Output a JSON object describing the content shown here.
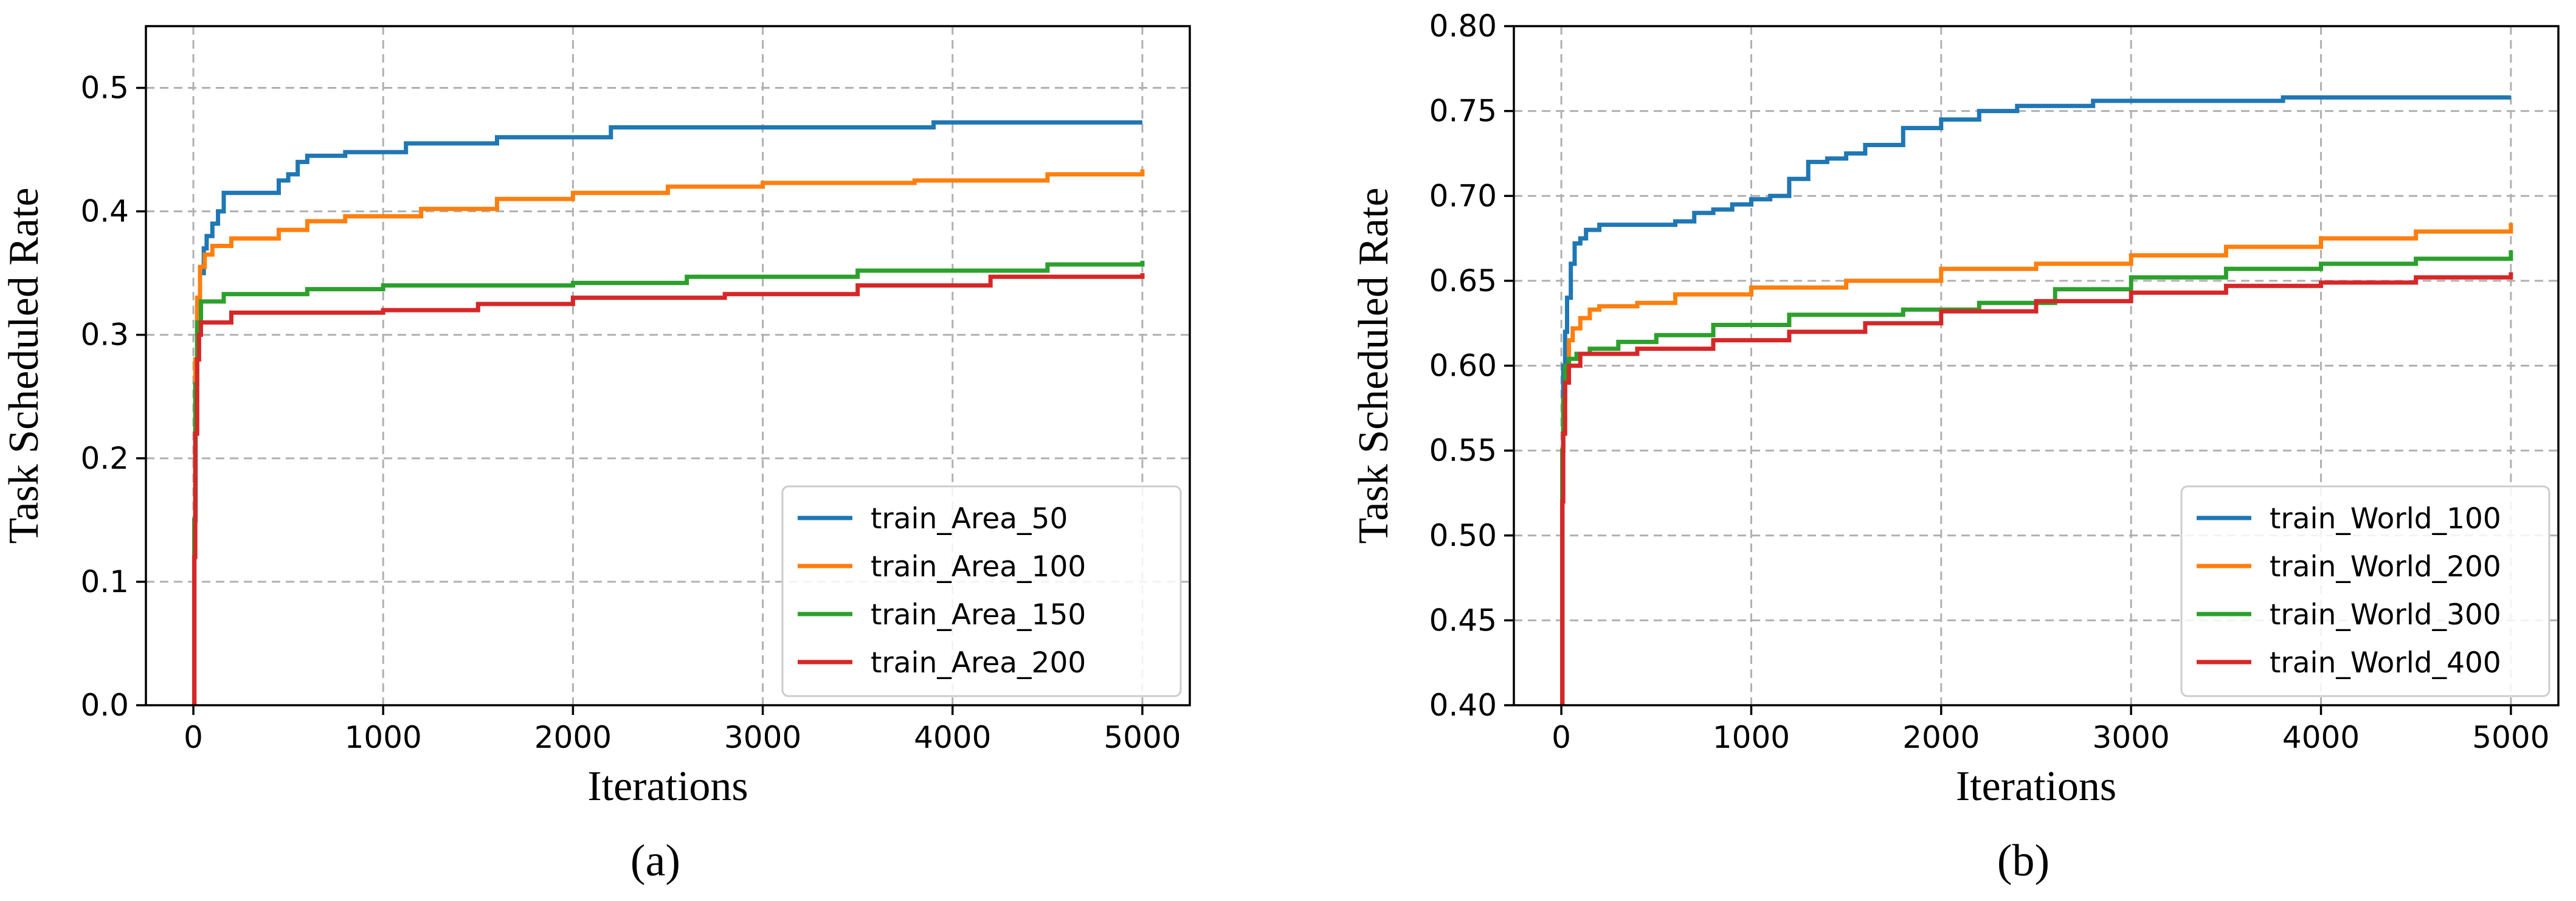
{
  "chart_data": [
    {
      "type": "line",
      "panel_label": "(a)",
      "xlabel": "Iterations",
      "ylabel": "Task Scheduled Rate",
      "xlim": [
        -250,
        5250
      ],
      "ylim": [
        0.0,
        0.55
      ],
      "xticks": [
        0,
        1000,
        2000,
        3000,
        4000,
        5000
      ],
      "xtick_labels": [
        "0",
        "1000",
        "2000",
        "3000",
        "4000",
        "5000"
      ],
      "yticks": [
        0.0,
        0.1,
        0.2,
        0.3,
        0.4,
        0.5
      ],
      "ytick_labels": [
        "0.0",
        "0.1",
        "0.2",
        "0.3",
        "0.4",
        "0.5"
      ],
      "grid": true,
      "legend_position": "lower-right",
      "series": [
        {
          "name": "train_Area_50",
          "color": "#1f77b4",
          "x": [
            0,
            5,
            12,
            20,
            35,
            55,
            70,
            100,
            130,
            160,
            450,
            500,
            550,
            600,
            800,
            1120,
            1600,
            2200,
            3900,
            5000
          ],
          "y": [
            0.0,
            0.15,
            0.27,
            0.32,
            0.35,
            0.37,
            0.38,
            0.39,
            0.4,
            0.415,
            0.425,
            0.43,
            0.44,
            0.445,
            0.448,
            0.455,
            0.46,
            0.468,
            0.472,
            0.472
          ]
        },
        {
          "name": "train_Area_100",
          "color": "#ff7f0e",
          "x": [
            0,
            5,
            10,
            20,
            35,
            60,
            100,
            200,
            450,
            600,
            800,
            1200,
            1600,
            2000,
            2500,
            3000,
            3800,
            4500,
            5000
          ],
          "y": [
            0.0,
            0.15,
            0.28,
            0.33,
            0.355,
            0.365,
            0.372,
            0.378,
            0.385,
            0.392,
            0.396,
            0.402,
            0.41,
            0.415,
            0.42,
            0.423,
            0.425,
            0.43,
            0.434
          ]
        },
        {
          "name": "train_Area_150",
          "color": "#2ca02c",
          "x": [
            0,
            5,
            10,
            20,
            40,
            160,
            600,
            1000,
            2000,
            2600,
            3500,
            4500,
            5000
          ],
          "y": [
            0.0,
            0.15,
            0.26,
            0.31,
            0.327,
            0.333,
            0.337,
            0.34,
            0.342,
            0.347,
            0.352,
            0.357,
            0.36
          ]
        },
        {
          "name": "train_Area_200",
          "color": "#d62728",
          "x": [
            0,
            5,
            10,
            20,
            30,
            40,
            200,
            1000,
            1500,
            2000,
            2800,
            3500,
            4200,
            5000
          ],
          "y": [
            0.0,
            0.12,
            0.22,
            0.28,
            0.3,
            0.31,
            0.318,
            0.32,
            0.325,
            0.33,
            0.333,
            0.34,
            0.347,
            0.35
          ]
        }
      ]
    },
    {
      "type": "line",
      "panel_label": "(b)",
      "xlabel": "Iterations",
      "ylabel": "Task Scheduled Rate",
      "xlim": [
        -250,
        5250
      ],
      "ylim": [
        0.4,
        0.8
      ],
      "xticks": [
        0,
        1000,
        2000,
        3000,
        4000,
        5000
      ],
      "xtick_labels": [
        "0",
        "1000",
        "2000",
        "3000",
        "4000",
        "5000"
      ],
      "yticks": [
        0.4,
        0.45,
        0.5,
        0.55,
        0.6,
        0.65,
        0.7,
        0.75,
        0.8
      ],
      "ytick_labels": [
        "0.40",
        "0.45",
        "0.50",
        "0.55",
        "0.60",
        "0.65",
        "0.70",
        "0.75",
        "0.80"
      ],
      "grid": true,
      "legend_position": "lower-right",
      "series": [
        {
          "name": "train_World_100",
          "color": "#1f77b4",
          "x": [
            0,
            5,
            10,
            20,
            30,
            50,
            70,
            100,
            130,
            200,
            600,
            700,
            800,
            900,
            1000,
            1100,
            1200,
            1300,
            1400,
            1500,
            1600,
            1800,
            2000,
            2200,
            2400,
            2800,
            3800,
            5000
          ],
          "y": [
            0.4,
            0.55,
            0.6,
            0.62,
            0.64,
            0.66,
            0.672,
            0.675,
            0.68,
            0.683,
            0.685,
            0.69,
            0.692,
            0.695,
            0.698,
            0.7,
            0.71,
            0.72,
            0.722,
            0.725,
            0.73,
            0.74,
            0.745,
            0.75,
            0.753,
            0.756,
            0.758,
            0.758
          ]
        },
        {
          "name": "train_World_200",
          "color": "#ff7f0e",
          "x": [
            0,
            5,
            10,
            20,
            40,
            60,
            100,
            150,
            200,
            400,
            600,
            1000,
            1500,
            2000,
            2500,
            3000,
            3500,
            4000,
            4500,
            5000
          ],
          "y": [
            0.4,
            0.55,
            0.58,
            0.6,
            0.615,
            0.622,
            0.628,
            0.633,
            0.635,
            0.637,
            0.642,
            0.646,
            0.65,
            0.657,
            0.66,
            0.665,
            0.67,
            0.675,
            0.679,
            0.684
          ]
        },
        {
          "name": "train_World_300",
          "color": "#2ca02c",
          "x": [
            0,
            5,
            10,
            20,
            40,
            80,
            150,
            300,
            500,
            800,
            1200,
            1800,
            2200,
            2600,
            3000,
            3500,
            4000,
            4500,
            5000
          ],
          "y": [
            0.4,
            0.55,
            0.58,
            0.6,
            0.604,
            0.607,
            0.61,
            0.614,
            0.618,
            0.624,
            0.63,
            0.633,
            0.637,
            0.645,
            0.652,
            0.657,
            0.66,
            0.663,
            0.668
          ]
        },
        {
          "name": "train_World_400",
          "color": "#d62728",
          "x": [
            0,
            5,
            10,
            20,
            40,
            100,
            400,
            800,
            1200,
            1600,
            2000,
            2500,
            3000,
            3500,
            4000,
            4500,
            5000
          ],
          "y": [
            0.4,
            0.52,
            0.56,
            0.59,
            0.6,
            0.607,
            0.61,
            0.615,
            0.62,
            0.625,
            0.632,
            0.638,
            0.643,
            0.647,
            0.649,
            0.652,
            0.655
          ]
        }
      ]
    }
  ]
}
